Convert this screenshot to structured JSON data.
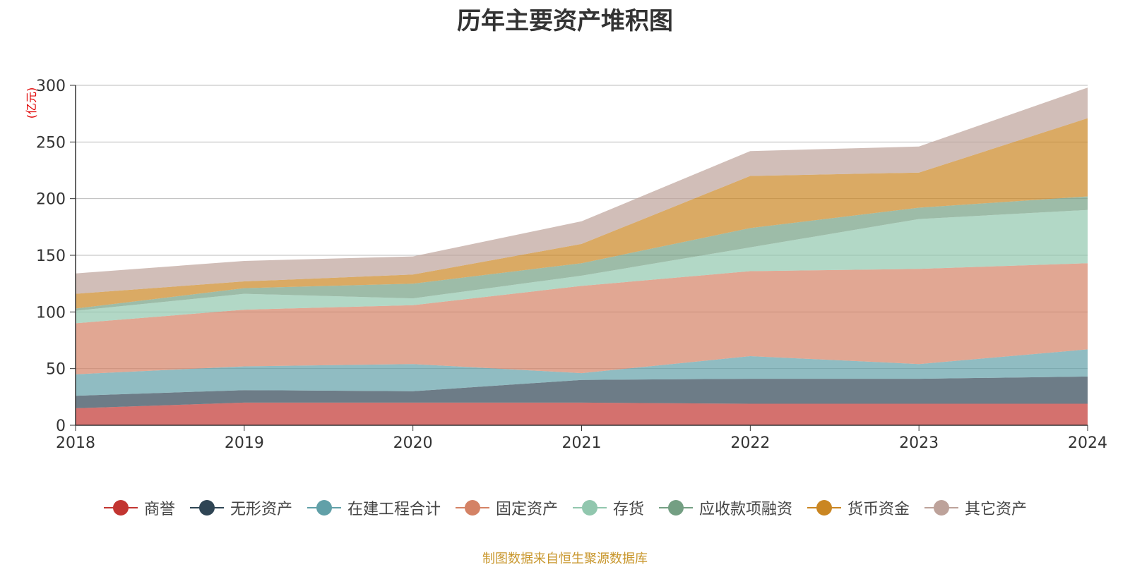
{
  "title": "历年主要资产堆积图",
  "source_note": "制图数据来自恒生聚源数据库",
  "chart_data": {
    "type": "area",
    "stacked": true,
    "title": "历年主要资产堆积图",
    "ylabel": "(亿元)",
    "ylim": [
      0,
      300
    ],
    "yticks": [
      0,
      50,
      100,
      150,
      200,
      250,
      300
    ],
    "x": [
      "2018",
      "2019",
      "2020",
      "2021",
      "2022",
      "2023",
      "2024"
    ],
    "grid": true,
    "legend_position": "bottom",
    "series": [
      {
        "name": "商誉",
        "color": "#c23531",
        "values": [
          15,
          20,
          20,
          20,
          19,
          19,
          19
        ]
      },
      {
        "name": "无形资产",
        "color": "#2f4554",
        "values": [
          11,
          11,
          10,
          20,
          22,
          22,
          24
        ]
      },
      {
        "name": "在建工程合计",
        "color": "#61a0a8",
        "values": [
          19,
          21,
          24,
          6,
          20,
          13,
          24
        ]
      },
      {
        "name": "固定资产",
        "color": "#d48265",
        "values": [
          45,
          50,
          52,
          77,
          75,
          84,
          76
        ]
      },
      {
        "name": "存货",
        "color": "#91c7ae",
        "values": [
          11,
          14,
          6,
          9,
          21,
          44,
          47
        ]
      },
      {
        "name": "应收款项融资",
        "color": "#749f83",
        "values": [
          2,
          5,
          13,
          11,
          17,
          10,
          12
        ]
      },
      {
        "name": "货币资金",
        "color": "#ca8622",
        "values": [
          13,
          6,
          8,
          17,
          46,
          31,
          69
        ]
      },
      {
        "name": "其它资产",
        "color": "#bda29a",
        "values": [
          18,
          18,
          16,
          20,
          22,
          23,
          27
        ]
      }
    ]
  }
}
